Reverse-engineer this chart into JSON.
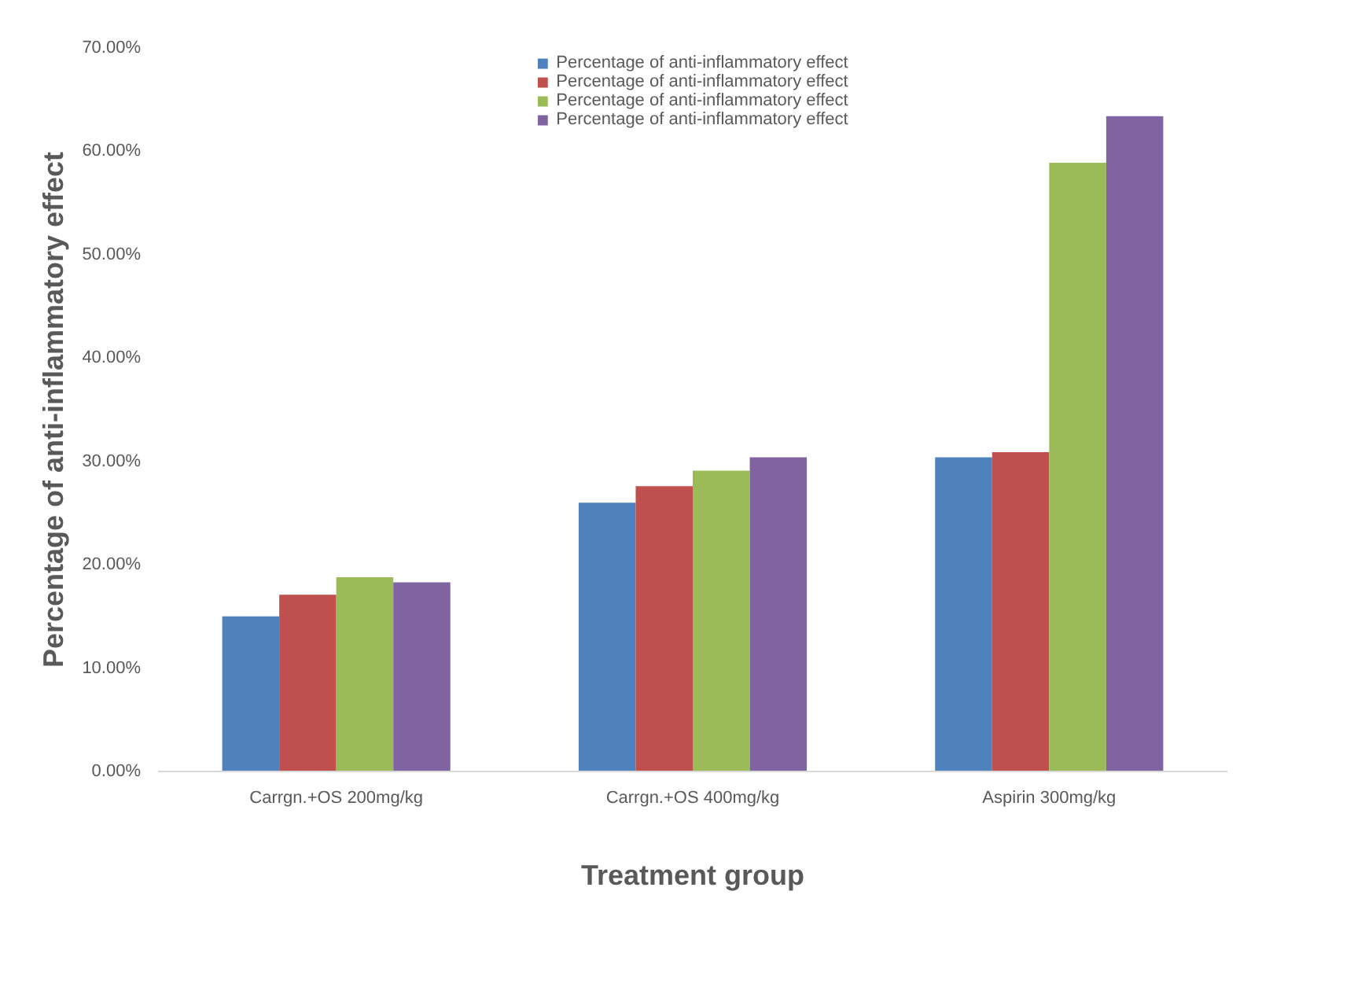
{
  "chart_data": {
    "type": "bar",
    "xlabel": "Treatment group",
    "ylabel": "Percentage of anti-inflammatory effect",
    "categories": [
      "Carrgn.+OS 200mg/kg",
      "Carrgn.+OS 400mg/kg",
      "Aspirin 300mg/kg"
    ],
    "series": [
      {
        "name": "Percentage of anti-inflammatory effect",
        "color": "#4f81bd",
        "values": [
          15.0,
          26.0,
          30.4
        ]
      },
      {
        "name": "Percentage of anti-inflammatory effect",
        "color": "#c0504d",
        "values": [
          17.1,
          27.6,
          30.9
        ]
      },
      {
        "name": "Percentage of anti-inflammatory effect",
        "color": "#9bbb59",
        "values": [
          18.8,
          29.1,
          58.9
        ]
      },
      {
        "name": "Percentage of anti-inflammatory effect",
        "color": "#8064a2",
        "values": [
          18.3,
          30.4,
          63.4
        ]
      }
    ],
    "ylim": [
      0,
      70
    ],
    "yticks": [
      {
        "value": 0,
        "label": "0.00%"
      },
      {
        "value": 10,
        "label": "10.00%"
      },
      {
        "value": 20,
        "label": "20.00%"
      },
      {
        "value": 30,
        "label": "30.00%"
      },
      {
        "value": 40,
        "label": "40.00%"
      },
      {
        "value": 50,
        "label": "50.00%"
      },
      {
        "value": 60,
        "label": "60.00%"
      },
      {
        "value": 70,
        "label": "70.00%"
      }
    ],
    "grid": false,
    "legend": "top"
  }
}
